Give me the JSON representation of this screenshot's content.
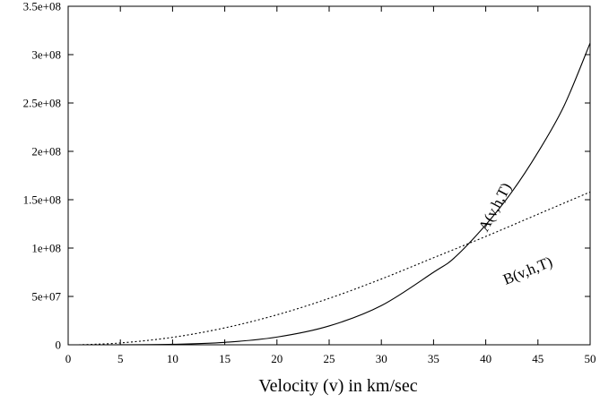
{
  "chart_data": {
    "type": "line",
    "title": "",
    "xlabel": "Velocity (v) in km/sec",
    "ylabel": "",
    "xlim": [
      0,
      50
    ],
    "ylim": [
      0,
      350000000
    ],
    "x_ticks": [
      0,
      5,
      10,
      15,
      20,
      25,
      30,
      35,
      40,
      45,
      50
    ],
    "x_tick_labels": [
      "0",
      "5",
      "10",
      "15",
      "20",
      "25",
      "30",
      "35",
      "40",
      "45",
      "50"
    ],
    "y_ticks": [
      0,
      50000000,
      100000000,
      150000000,
      200000000,
      250000000,
      300000000,
      350000000
    ],
    "y_tick_labels": [
      "0",
      "5e+07",
      "1e+08",
      "1.5e+08",
      "2e+08",
      "2.5e+08",
      "3e+08",
      "3.5e+08"
    ],
    "grid": false,
    "legend": "none",
    "series": [
      {
        "name": "A(v,h,T)",
        "style": "solid",
        "x": [
          1,
          5,
          10,
          15,
          20,
          25,
          30,
          35,
          37,
          40,
          42.5,
          45,
          47.5,
          50
        ],
        "y": [
          0,
          30000,
          500000,
          2500000,
          8000000,
          19500000,
          40500000,
          75000000,
          90000000,
          124000000,
          158000000,
          199000000,
          247000000,
          312000000
        ]
      },
      {
        "name": "B(v,h,T)",
        "style": "dotted",
        "x": [
          1,
          5,
          10,
          15,
          20,
          25,
          30,
          35,
          40,
          45,
          50
        ],
        "y": [
          0,
          1900000,
          7700000,
          17500000,
          31000000,
          48000000,
          68000000,
          90000000,
          112000000,
          135000000,
          158000000
        ]
      }
    ],
    "annotations": [
      {
        "text": "A(v,h,T)",
        "series": 0
      },
      {
        "text": "B(v,h,T)",
        "series": 1
      }
    ]
  }
}
